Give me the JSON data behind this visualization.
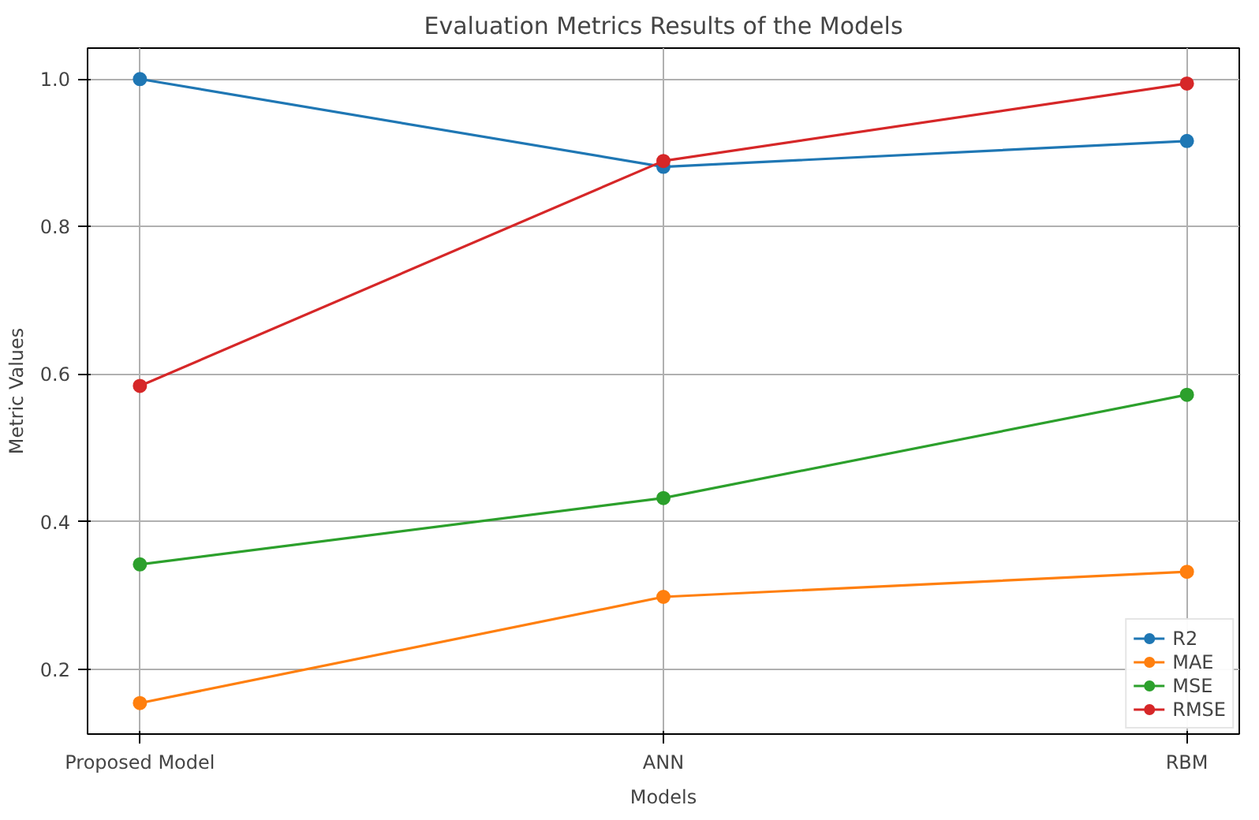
{
  "chart_data": {
    "type": "line",
    "title": "Evaluation Metrics Results of the Models",
    "xlabel": "Models",
    "ylabel": "Metric Values",
    "categories": [
      "Proposed Model",
      "ANN",
      "RBM"
    ],
    "series": [
      {
        "name": "R2",
        "color": "#1f77b4",
        "values": [
          1.0,
          0.881,
          0.916
        ]
      },
      {
        "name": "MAE",
        "color": "#ff7f0e",
        "values": [
          0.154,
          0.298,
          0.332
        ]
      },
      {
        "name": "MSE",
        "color": "#2ca02c",
        "values": [
          0.342,
          0.432,
          0.572
        ]
      },
      {
        "name": "RMSE",
        "color": "#d62728",
        "values": [
          0.584,
          0.889,
          0.994
        ]
      }
    ],
    "ylim": [
      0.112,
      1.042
    ],
    "yticks": [
      {
        "value": 0.2,
        "label": "0.2"
      },
      {
        "value": 0.4,
        "label": "0.4"
      },
      {
        "value": 0.6,
        "label": "0.6"
      },
      {
        "value": 0.8,
        "label": "0.8"
      },
      {
        "value": 1.0,
        "label": "1.0"
      }
    ],
    "grid": true,
    "legend": "bottom right",
    "marker": "circle",
    "line_style": "solid"
  }
}
